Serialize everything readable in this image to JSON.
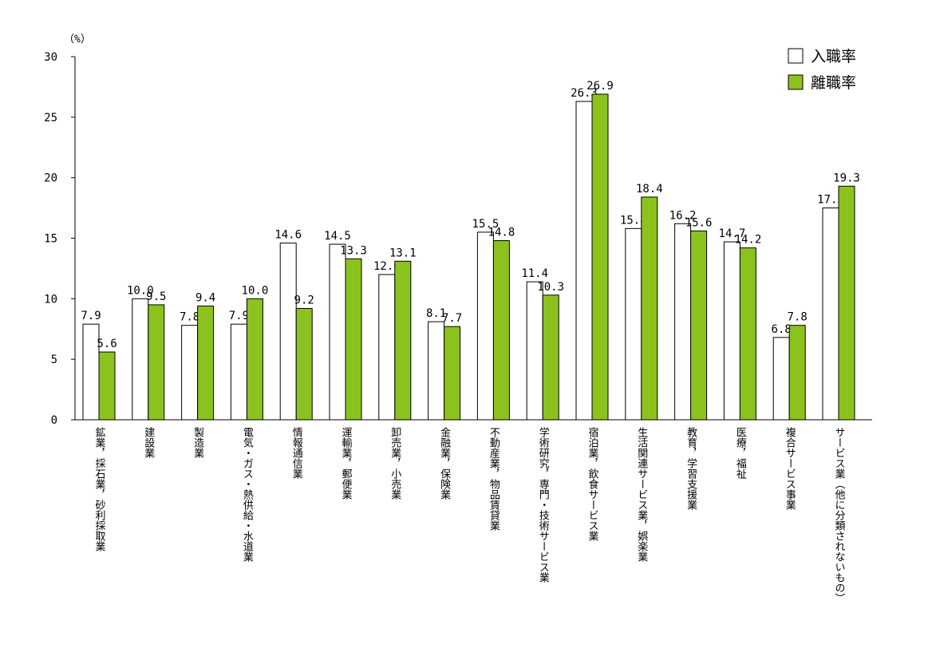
{
  "chart_data": {
    "type": "bar",
    "y_unit": "（%）",
    "ylim": [
      0,
      30
    ],
    "y_ticks": [
      0,
      5,
      10,
      15,
      20,
      25,
      30
    ],
    "grid": false,
    "legend_position": "top-right",
    "categories": [
      "鉱業，採石業，砂利採取業",
      "建設業",
      "製造業",
      "電気・ガス・熱供給・水道業",
      "情報通信業",
      "運輸業，郵便業",
      "卸売業，小売業",
      "金融業，保険業",
      "不動産業，物品賃貸業",
      "学術研究，専門・技術サービス業",
      "宿泊業，飲食サービス業",
      "生活関連サービス業，娯楽業",
      "教育，学習支援業",
      "医療，福祉",
      "複合サービス事業",
      "サービス業（他に分類されないもの）"
    ],
    "series": [
      {
        "name": "入職率",
        "color": "#ffffff",
        "values": [
          7.9,
          10.0,
          7.8,
          7.9,
          14.6,
          14.5,
          12.0,
          8.1,
          15.5,
          11.4,
          26.3,
          15.8,
          16.2,
          14.7,
          6.8,
          17.5
        ]
      },
      {
        "name": "離職率",
        "color": "#8cc21e",
        "values": [
          5.6,
          9.5,
          9.4,
          10.0,
          9.2,
          13.3,
          13.1,
          7.7,
          14.8,
          10.3,
          26.9,
          18.4,
          15.6,
          14.2,
          7.8,
          19.3
        ]
      }
    ]
  }
}
